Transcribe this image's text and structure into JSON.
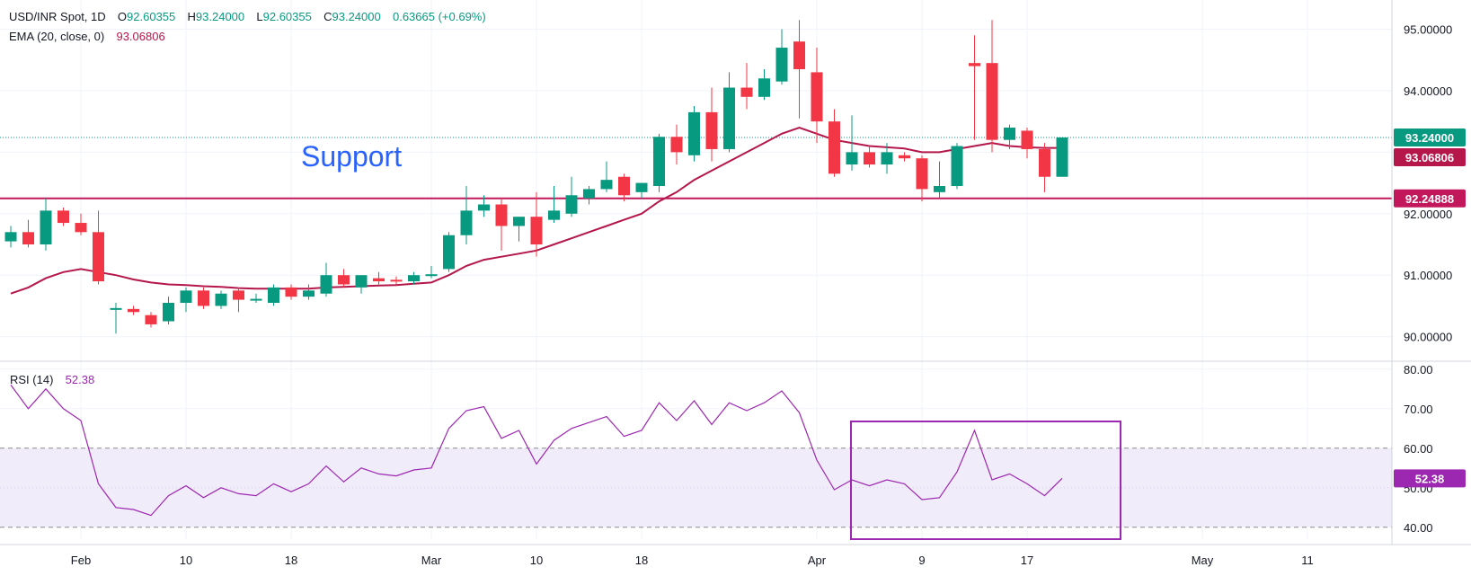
{
  "header": {
    "symbol": "USD/INR Spot, 1D",
    "o_label": "O",
    "o_value": "92.60355",
    "h_label": "H",
    "h_value": "93.24000",
    "l_label": "L",
    "l_value": "92.60355",
    "c_label": "C",
    "c_value": "93.24000",
    "change": "0.63665 (+0.69%)",
    "ema_label": "EMA (20, close, 0)",
    "ema_value": "93.06806",
    "rsi_label": "RSI (14)",
    "rsi_value": "52.38"
  },
  "annotation": {
    "support_text": "Support"
  },
  "colors": {
    "up": "#089981",
    "down": "#f23645",
    "ema": "#b5174a",
    "support": "#c2185b",
    "rsi": "#9c27b0",
    "rsi_band": "#f0ecf9",
    "last_price": "#089981"
  },
  "chart_data": [
    {
      "type": "candlestick",
      "title": "USD/INR Spot, 1D",
      "ylim": [
        89.6,
        95.3
      ],
      "yticks": [
        "90.00000",
        "91.00000",
        "92.00000",
        "93.00000",
        "94.00000",
        "95.00000"
      ],
      "xticks": [
        {
          "i": 4,
          "label": "Feb"
        },
        {
          "i": 10,
          "label": "10"
        },
        {
          "i": 16,
          "label": "18"
        },
        {
          "i": 24,
          "label": "Mar"
        },
        {
          "i": 30,
          "label": "10"
        },
        {
          "i": 36,
          "label": "18"
        },
        {
          "i": 46,
          "label": "Apr"
        },
        {
          "i": 52,
          "label": "9"
        },
        {
          "i": 58,
          "label": "17"
        },
        {
          "i": 68,
          "label": "May"
        },
        {
          "i": 74,
          "label": "11"
        }
      ],
      "candles": [
        [
          91.55,
          91.8,
          91.45,
          91.7
        ],
        [
          91.7,
          91.9,
          91.45,
          91.5
        ],
        [
          91.5,
          92.25,
          91.4,
          92.05
        ],
        [
          92.05,
          92.1,
          91.8,
          91.85
        ],
        [
          91.85,
          92.0,
          91.65,
          91.7
        ],
        [
          91.7,
          92.05,
          90.85,
          90.9
        ],
        [
          90.45,
          90.55,
          90.05,
          90.45
        ],
        [
          90.45,
          90.5,
          90.35,
          90.4
        ],
        [
          90.35,
          90.4,
          90.15,
          90.2
        ],
        [
          90.25,
          90.65,
          90.2,
          90.55
        ],
        [
          90.55,
          90.8,
          90.4,
          90.75
        ],
        [
          90.75,
          90.8,
          90.45,
          90.5
        ],
        [
          90.5,
          90.75,
          90.45,
          90.7
        ],
        [
          90.75,
          90.8,
          90.4,
          90.6
        ],
        [
          90.6,
          90.7,
          90.55,
          90.6
        ],
        [
          90.55,
          90.85,
          90.5,
          90.8
        ],
        [
          90.8,
          90.85,
          90.6,
          90.65
        ],
        [
          90.65,
          90.85,
          90.6,
          90.75
        ],
        [
          90.7,
          91.2,
          90.65,
          91.0
        ],
        [
          91.0,
          91.1,
          90.8,
          90.85
        ],
        [
          90.8,
          91.0,
          90.7,
          91.0
        ],
        [
          90.95,
          91.05,
          90.85,
          90.9
        ],
        [
          90.92,
          90.98,
          90.85,
          90.9
        ],
        [
          90.9,
          91.05,
          90.85,
          91.0
        ],
        [
          91.0,
          91.15,
          90.95,
          91.0
        ],
        [
          91.1,
          91.7,
          91.05,
          91.65
        ],
        [
          91.65,
          92.45,
          91.5,
          92.05
        ],
        [
          92.05,
          92.3,
          91.95,
          92.15
        ],
        [
          92.15,
          92.25,
          91.4,
          91.8
        ],
        [
          91.8,
          91.95,
          91.55,
          91.95
        ],
        [
          91.95,
          92.35,
          91.3,
          91.5
        ],
        [
          91.9,
          92.45,
          91.85,
          92.05
        ],
        [
          92.0,
          92.6,
          91.95,
          92.3
        ],
        [
          92.25,
          92.45,
          92.15,
          92.4
        ],
        [
          92.4,
          92.85,
          92.35,
          92.55
        ],
        [
          92.6,
          92.65,
          92.2,
          92.3
        ],
        [
          92.35,
          92.5,
          92.25,
          92.5
        ],
        [
          92.45,
          93.3,
          92.35,
          93.25
        ],
        [
          93.25,
          93.45,
          92.8,
          93.0
        ],
        [
          92.95,
          93.75,
          92.85,
          93.65
        ],
        [
          93.65,
          94.05,
          92.85,
          93.05
        ],
        [
          93.05,
          94.3,
          93.0,
          94.05
        ],
        [
          94.05,
          94.45,
          93.7,
          93.9
        ],
        [
          93.9,
          94.35,
          93.85,
          94.2
        ],
        [
          94.15,
          95.0,
          94.1,
          94.7
        ],
        [
          94.8,
          95.15,
          93.55,
          94.35
        ],
        [
          94.3,
          94.7,
          93.15,
          93.5
        ],
        [
          93.5,
          93.7,
          92.6,
          92.65
        ],
        [
          92.8,
          93.6,
          92.7,
          93.0
        ],
        [
          93.0,
          93.1,
          92.75,
          92.8
        ],
        [
          92.8,
          93.15,
          92.65,
          93.0
        ],
        [
          92.95,
          93.0,
          92.85,
          92.9
        ],
        [
          92.9,
          92.95,
          92.2,
          92.4
        ],
        [
          92.35,
          92.85,
          92.25,
          92.45
        ],
        [
          92.45,
          93.15,
          92.4,
          93.1
        ],
        [
          94.45,
          94.9,
          93.2,
          94.4
        ],
        [
          94.45,
          95.15,
          93.0,
          93.2
        ],
        [
          93.2,
          93.45,
          93.05,
          93.4
        ],
        [
          93.35,
          93.4,
          92.9,
          93.05
        ],
        [
          93.05,
          93.15,
          92.35,
          92.6
        ],
        [
          92.6,
          93.24,
          92.6,
          93.24
        ]
      ],
      "ema": [
        90.7,
        90.8,
        90.95,
        91.05,
        91.1,
        91.05,
        91.0,
        90.93,
        90.88,
        90.85,
        90.84,
        90.82,
        90.81,
        90.79,
        90.78,
        90.78,
        90.78,
        90.78,
        90.8,
        90.81,
        90.82,
        90.83,
        90.84,
        90.86,
        90.88,
        91.0,
        91.15,
        91.25,
        91.3,
        91.35,
        91.4,
        91.5,
        91.6,
        91.7,
        91.8,
        91.9,
        92.0,
        92.2,
        92.35,
        92.55,
        92.7,
        92.85,
        93.0,
        93.15,
        93.3,
        93.4,
        93.3,
        93.2,
        93.15,
        93.1,
        93.08,
        93.06,
        93.0,
        93.0,
        93.05,
        93.1,
        93.15,
        93.1,
        93.08,
        93.07,
        93.07
      ],
      "support_level": 92.24888,
      "support_label": "92.24888",
      "ema_last_label": "93.06806",
      "last_price": 93.24,
      "last_price_label": "93.24000"
    },
    {
      "type": "line",
      "title": "RSI (14)",
      "ylim": [
        37,
        82
      ],
      "yticks": [
        "40.00",
        "50.00",
        "60.00",
        "70.00",
        "80.00"
      ],
      "band": [
        40,
        60
      ],
      "values": [
        76,
        70,
        75,
        70,
        67,
        51,
        45,
        44.5,
        43,
        48,
        50.5,
        47.5,
        50,
        48.5,
        48,
        51,
        49,
        51,
        55.5,
        51.5,
        55,
        53.5,
        53,
        54.5,
        55,
        65,
        69.5,
        70.5,
        62.5,
        64.5,
        56,
        62,
        65,
        66.5,
        68,
        63,
        64.5,
        71.5,
        67,
        72,
        66,
        71.5,
        69.5,
        71.5,
        74.5,
        69,
        57,
        49.5,
        52,
        50.5,
        52,
        51,
        47,
        47.5,
        54,
        64.5,
        52,
        53.5,
        51,
        48,
        52.38
      ],
      "last_label": "52.38"
    }
  ]
}
